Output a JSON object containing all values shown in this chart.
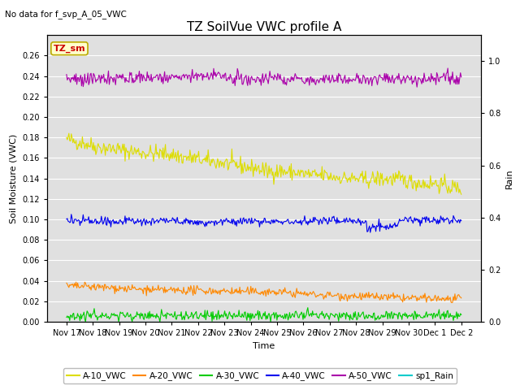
{
  "title": "TZ SoilVue VWC profile A",
  "no_data_text": "No data for f_svp_A_05_VWC",
  "xlabel": "Time",
  "ylabel_left": "Soil Moisture (VWC)",
  "ylabel_right": "Rain",
  "ylim_left": [
    0.0,
    0.28
  ],
  "ylim_right": [
    0.0,
    1.1
  ],
  "yticks_left": [
    0.0,
    0.02,
    0.04,
    0.06,
    0.08,
    0.1,
    0.12,
    0.14,
    0.16,
    0.18,
    0.2,
    0.22,
    0.24,
    0.26
  ],
  "yticks_right": [
    0.0,
    0.2,
    0.4,
    0.6,
    0.8,
    1.0
  ],
  "background_color": "#e0e0e0",
  "fig_facecolor": "#ffffff",
  "legend_box_facecolor": "#ffffcc",
  "legend_box_edgecolor": "#bbaa00",
  "tz_sm_text_color": "#cc0000",
  "series_colors": {
    "A-10_VWC": "#dddd00",
    "A-20_VWC": "#ff8800",
    "A-30_VWC": "#00cc00",
    "A-40_VWC": "#0000ee",
    "A-50_VWC": "#aa00aa",
    "sp1_Rain": "#00cccc"
  },
  "xticklabels": [
    "Nov 17",
    "Nov 18",
    "Nov 19",
    "Nov 20",
    "Nov 21",
    "Nov 22",
    "Nov 23",
    "Nov 24",
    "Nov 25",
    "Nov 26",
    "Nov 27",
    "Nov 28",
    "Nov 29",
    "Nov 30",
    "Dec 1",
    "Dec 2"
  ],
  "n_points": 500,
  "title_fontsize": 11,
  "axis_label_fontsize": 8,
  "tick_fontsize": 7,
  "legend_fontsize": 7.5,
  "no_data_fontsize": 7.5,
  "tz_sm_fontsize": 8
}
